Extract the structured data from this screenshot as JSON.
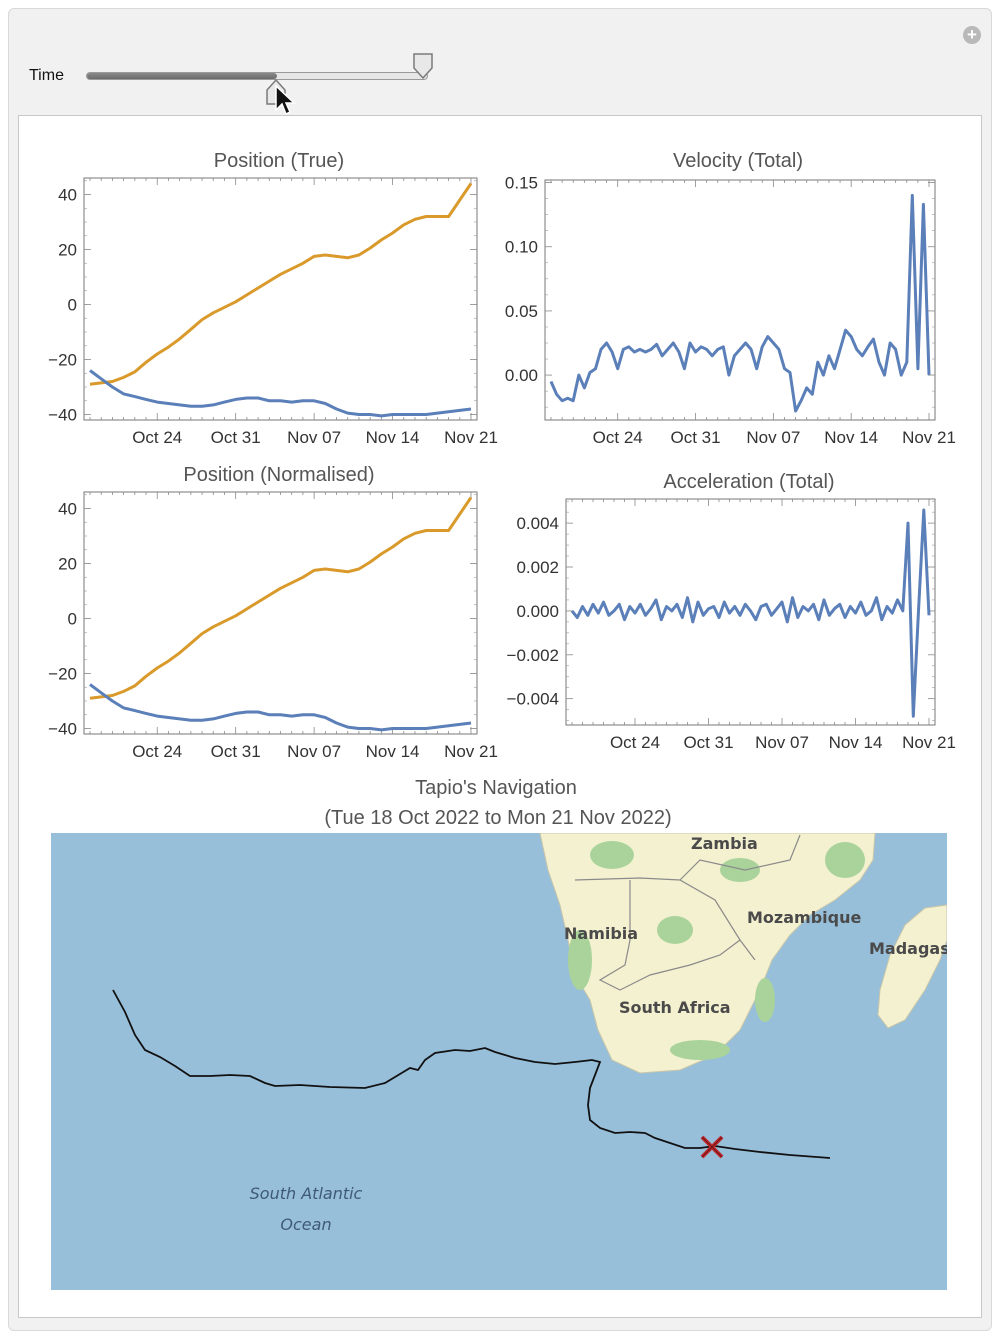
{
  "controls": {
    "time_label": "Time",
    "slider_value": 0.56,
    "plus_icon": "add-circle-icon"
  },
  "colors": {
    "blue": "#5b7fb8",
    "orange": "#d99a2b",
    "ocean": "#98bfda",
    "land": "#f4f1d0",
    "green": "#a9d39a",
    "track": "#111111",
    "marker": "#c0282c"
  },
  "chart_data": [
    {
      "type": "line",
      "title": "Position (True)",
      "x_ticks": [
        "Oct 24",
        "Oct 31",
        "Nov 07",
        "Nov 14",
        "Nov 21"
      ],
      "y_ticks": [
        "40",
        "20",
        "0",
        "−20",
        "−40"
      ],
      "ylim": [
        -42,
        46
      ],
      "x_range": [
        "2022-10-18",
        "2022-11-21"
      ],
      "series": [
        {
          "color": "orange",
          "x": [
            0,
            1,
            2,
            3,
            4,
            5,
            6,
            7,
            8,
            9,
            10,
            11,
            12,
            13,
            14,
            15,
            16,
            17,
            18,
            19,
            20,
            21,
            22,
            23,
            24,
            25,
            26,
            27,
            28,
            29,
            30,
            31,
            32,
            33,
            34
          ],
          "values": [
            -29,
            -28.5,
            -28,
            -26.5,
            -24.5,
            -21,
            -18,
            -15.5,
            -12.5,
            -9,
            -5.5,
            -3,
            -1,
            1,
            3.5,
            6,
            8.5,
            11,
            13,
            15,
            17.5,
            18,
            17.5,
            17,
            18,
            20.5,
            23.5,
            26,
            29,
            31,
            32,
            32,
            32,
            38,
            44
          ]
        },
        {
          "color": "blue",
          "x": [
            0,
            1,
            2,
            3,
            4,
            5,
            6,
            7,
            8,
            9,
            10,
            11,
            12,
            13,
            14,
            15,
            16,
            17,
            18,
            19,
            20,
            21,
            22,
            23,
            24,
            25,
            26,
            27,
            28,
            29,
            30,
            31,
            32,
            33,
            34
          ],
          "values": [
            -24,
            -27,
            -30,
            -32.5,
            -33.5,
            -34.5,
            -35.5,
            -36,
            -36.5,
            -37,
            -37,
            -36.5,
            -35.5,
            -34.5,
            -34,
            -34,
            -35,
            -35,
            -35.5,
            -35,
            -35,
            -36,
            -38,
            -39.5,
            -40,
            -40,
            -40.5,
            -40,
            -40,
            -40,
            -40,
            -39.5,
            -39,
            -38.5,
            -38
          ]
        }
      ]
    },
    {
      "type": "line",
      "title": "Velocity (Total)",
      "x_ticks": [
        "Oct 24",
        "Oct 31",
        "Nov 07",
        "Nov 14",
        "Nov 21"
      ],
      "y_ticks": [
        "0.15",
        "0.10",
        "0.05",
        "0.00"
      ],
      "ylim": [
        -0.035,
        0.152
      ],
      "x_range": [
        "2022-10-18",
        "2022-11-21"
      ],
      "series": [
        {
          "color": "blue",
          "x": [
            0,
            0.5,
            1,
            1.5,
            2,
            2.5,
            3,
            3.5,
            4,
            4.5,
            5,
            5.5,
            6,
            6.5,
            7,
            7.5,
            8,
            8.5,
            9,
            9.5,
            10,
            10.5,
            11,
            11.5,
            12,
            12.5,
            13,
            13.5,
            14,
            14.5,
            15,
            15.5,
            16,
            16.5,
            17,
            17.5,
            18,
            18.5,
            19,
            19.5,
            20,
            20.5,
            21,
            21.5,
            22,
            22.5,
            23,
            23.5,
            24,
            24.5,
            25,
            25.5,
            26,
            26.5,
            27,
            27.5,
            28,
            28.5,
            29,
            29.5,
            30,
            30.5,
            31,
            31.5,
            32,
            32.5,
            33,
            33.5,
            34
          ],
          "values": [
            -0.005,
            -0.015,
            -0.02,
            -0.018,
            -0.02,
            0.0,
            -0.01,
            0.002,
            0.005,
            0.02,
            0.025,
            0.018,
            0.005,
            0.02,
            0.022,
            0.018,
            0.02,
            0.018,
            0.02,
            0.024,
            0.015,
            0.02,
            0.025,
            0.018,
            0.005,
            0.025,
            0.018,
            0.022,
            0.02,
            0.015,
            0.02,
            0.022,
            0.0,
            0.015,
            0.02,
            0.025,
            0.02,
            0.005,
            0.022,
            0.03,
            0.025,
            0.02,
            0.005,
            0.002,
            -0.028,
            -0.02,
            -0.01,
            -0.015,
            0.01,
            0.0,
            0.015,
            0.005,
            0.02,
            0.035,
            0.03,
            0.02,
            0.015,
            0.022,
            0.028,
            0.01,
            0.0,
            0.025,
            0.02,
            0.0,
            0.01,
            0.14,
            0.005,
            0.133,
            0.0
          ]
        }
      ]
    },
    {
      "type": "line",
      "title": "Position (Normalised)",
      "x_ticks": [
        "Oct 24",
        "Oct 31",
        "Nov 07",
        "Nov 14",
        "Nov 21"
      ],
      "y_ticks": [
        "40",
        "20",
        "0",
        "−20",
        "−40"
      ],
      "ylim": [
        -42,
        46
      ],
      "x_range": [
        "2022-10-18",
        "2022-11-21"
      ],
      "series": [
        {
          "color": "orange",
          "x": [
            0,
            1,
            2,
            3,
            4,
            5,
            6,
            7,
            8,
            9,
            10,
            11,
            12,
            13,
            14,
            15,
            16,
            17,
            18,
            19,
            20,
            21,
            22,
            23,
            24,
            25,
            26,
            27,
            28,
            29,
            30,
            31,
            32,
            33,
            34
          ],
          "values": [
            -29,
            -28.5,
            -28,
            -26.5,
            -24.5,
            -21,
            -18,
            -15.5,
            -12.5,
            -9,
            -5.5,
            -3,
            -1,
            1,
            3.5,
            6,
            8.5,
            11,
            13,
            15,
            17.5,
            18,
            17.5,
            17,
            18,
            20.5,
            23.5,
            26,
            29,
            31,
            32,
            32,
            32,
            38,
            44
          ]
        },
        {
          "color": "blue",
          "x": [
            0,
            1,
            2,
            3,
            4,
            5,
            6,
            7,
            8,
            9,
            10,
            11,
            12,
            13,
            14,
            15,
            16,
            17,
            18,
            19,
            20,
            21,
            22,
            23,
            24,
            25,
            26,
            27,
            28,
            29,
            30,
            31,
            32,
            33,
            34
          ],
          "values": [
            -24,
            -27,
            -30,
            -32.5,
            -33.5,
            -34.5,
            -35.5,
            -36,
            -36.5,
            -37,
            -37,
            -36.5,
            -35.5,
            -34.5,
            -34,
            -34,
            -35,
            -35,
            -35.5,
            -35,
            -35,
            -36,
            -38,
            -39.5,
            -40,
            -40,
            -40.5,
            -40,
            -40,
            -40,
            -40,
            -39.5,
            -39,
            -38.5,
            -38
          ]
        }
      ]
    },
    {
      "type": "line",
      "title": "Acceleration (Total)",
      "x_ticks": [
        "Oct 24",
        "Oct 31",
        "Nov 07",
        "Nov 14",
        "Nov 21"
      ],
      "y_ticks": [
        "0.004",
        "0.002",
        "0.000",
        "−0.002",
        "−0.004"
      ],
      "ylim": [
        -0.0052,
        0.0051
      ],
      "x_range": [
        "2022-10-18",
        "2022-11-21"
      ],
      "series": [
        {
          "color": "blue",
          "x": [
            0,
            0.5,
            1,
            1.5,
            2,
            2.5,
            3,
            3.5,
            4,
            4.5,
            5,
            5.5,
            6,
            6.5,
            7,
            7.5,
            8,
            8.5,
            9,
            9.5,
            10,
            10.5,
            11,
            11.5,
            12,
            12.5,
            13,
            13.5,
            14,
            14.5,
            15,
            15.5,
            16,
            16.5,
            17,
            17.5,
            18,
            18.5,
            19,
            19.5,
            20,
            20.5,
            21,
            21.5,
            22,
            22.5,
            23,
            23.5,
            24,
            24.5,
            25,
            25.5,
            26,
            26.5,
            27,
            27.5,
            28,
            28.5,
            29,
            29.5,
            30,
            30.5,
            31,
            31.5,
            32,
            32.5,
            33,
            33.5,
            34
          ],
          "values": [
            0.0,
            -0.0003,
            0.0002,
            -0.0002,
            0.0003,
            -0.0001,
            0.0004,
            -0.0002,
            0.0,
            0.0003,
            -0.0004,
            0.0002,
            -0.0001,
            0.0003,
            -0.0002,
            0.0001,
            0.0005,
            -0.0004,
            0.0002,
            0.0,
            0.0003,
            -0.0003,
            0.0006,
            -0.0005,
            0.0004,
            -0.0002,
            0.0001,
            0.0002,
            -0.0003,
            0.0004,
            -0.0001,
            0.0002,
            -0.0002,
            0.0003,
            0.0,
            -0.0004,
            0.0002,
            0.0003,
            -0.0002,
            0.0001,
            0.0004,
            -0.0005,
            0.0006,
            -0.0003,
            0.0002,
            0.0,
            0.0003,
            -0.0004,
            0.0005,
            -0.0002,
            0.0001,
            0.0003,
            -0.0003,
            0.0002,
            -0.0001,
            0.0004,
            -0.0002,
            0.0,
            0.0006,
            -0.0004,
            0.0002,
            -0.0001,
            0.0005,
            0.0,
            0.004,
            -0.0048,
            0.0,
            0.0046,
            -0.0002
          ]
        }
      ]
    }
  ],
  "map": {
    "title": "Tapio's Navigation",
    "subtitle": "(Tue 18 Oct 2022 to Mon 21 Nov 2022)",
    "labels": {
      "zambia": "Zambia",
      "namibia": "Namibia",
      "mozambique": "Mozambique",
      "madagascar": "Madagasc",
      "south_africa": "South Africa",
      "ocean_line1": "South Atlantic",
      "ocean_line2": "Ocean"
    },
    "marker_icon": "cross-marker-icon"
  }
}
